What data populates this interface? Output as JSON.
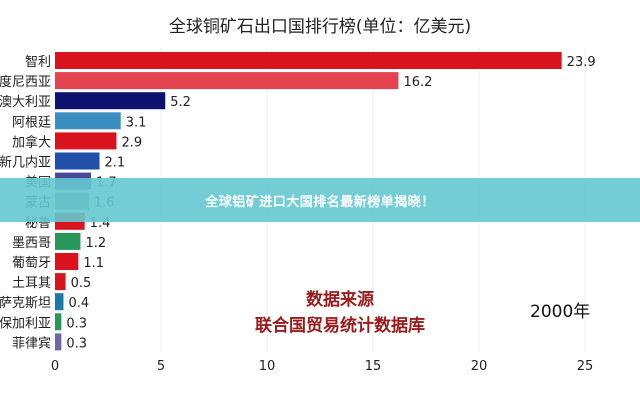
{
  "chart_data": {
    "type": "bar",
    "orientation": "horizontal",
    "title": "全球铜矿石出口国排行榜(单位：亿美元)",
    "categories": [
      "智利",
      "印度尼西亚",
      "澳大利亚",
      "阿根廷",
      "加拿大",
      "巴布亚新几内亚",
      "美国",
      "蒙古",
      "秘鲁",
      "墨西哥",
      "葡萄牙",
      "土耳其",
      "哈萨克斯坦",
      "保加利亚",
      "菲律宾"
    ],
    "values": [
      23.9,
      16.2,
      5.2,
      3.1,
      2.9,
      2.1,
      1.7,
      1.6,
      1.4,
      1.2,
      1.1,
      0.5,
      0.4,
      0.3,
      0.3
    ],
    "colors": [
      "#d9141e",
      "#e2434f",
      "#0d1270",
      "#3b8fc0",
      "#d9141e",
      "#1f4fa8",
      "#4a4a9a",
      "#808080",
      "#d9141e",
      "#27975a",
      "#d9141e",
      "#d9141e",
      "#1a7aa8",
      "#27975a",
      "#6a6aaa"
    ],
    "xlim": [
      0,
      25
    ],
    "xticks": [
      0,
      5,
      10,
      15,
      20,
      25
    ],
    "grid": true,
    "annotation_year": "2000年",
    "source_title": "数据来源",
    "source_text": "联合国贸易统计数据库"
  },
  "banner": "全球铝矿进口大国排名最新榜单揭晓！"
}
